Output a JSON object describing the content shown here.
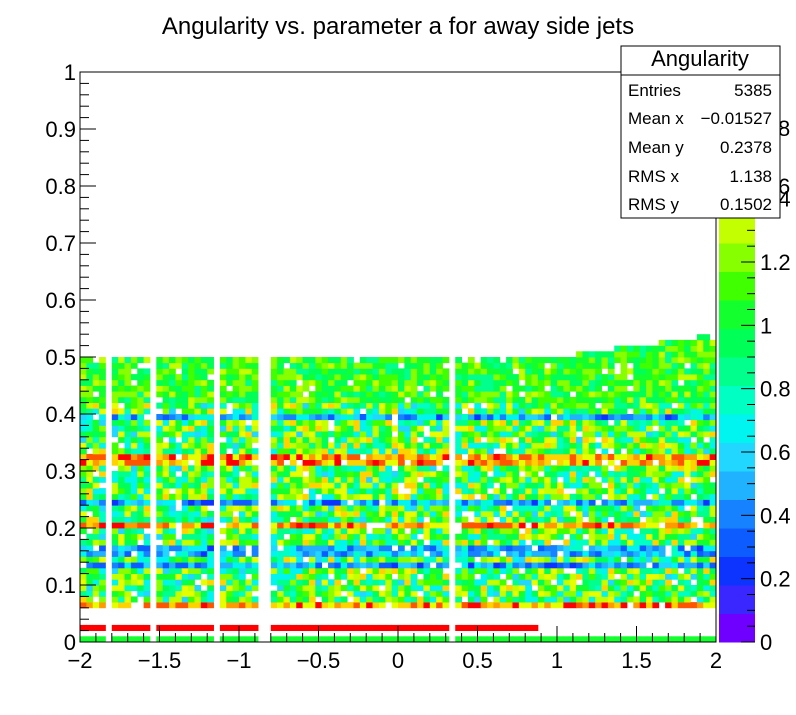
{
  "chart_data": {
    "type": "heatmap",
    "title": "Angularity vs. parameter a for away side jets",
    "xlabel": "",
    "ylabel": "",
    "xlim": [
      -2,
      2
    ],
    "ylim": [
      0,
      1
    ],
    "x_ticks": [
      "−2",
      "−1.5",
      "−1",
      "−0.5",
      "0",
      "0.5",
      "1",
      "1.5",
      "2"
    ],
    "y_ticks": [
      "0",
      "0.1",
      "0.2",
      "0.3",
      "0.4",
      "0.5",
      "0.6",
      "0.7",
      "0.8",
      "0.9",
      "1"
    ],
    "x_bins": 100,
    "y_bins": 100,
    "z_range": [
      0,
      1.8
    ],
    "z_ticks": [
      "0",
      "0.2",
      "0.4",
      "0.6",
      "0.8",
      "1",
      "1.2",
      "1.4"
    ],
    "z_ticks_hidden": [
      "6",
      "8"
    ],
    "empty_x_ranges": [
      [
        -1.82,
        -1.78
      ],
      [
        -1.57,
        -1.53
      ],
      [
        -1.15,
        -1.11
      ],
      [
        -0.86,
        -0.82
      ],
      [
        0.33,
        0.36
      ]
    ],
    "populated_region": "y from 0 to about 0.5; upper edge rises to about 0.54 for x > 1",
    "bottom_row": {
      "y": [
        0.0,
        0.01
      ],
      "level": 1.0
    },
    "red_band": {
      "y": [
        0.02,
        0.03
      ],
      "x": [
        -2,
        0.87
      ],
      "level": 1.8
    },
    "grid": false
  },
  "stats_box": {
    "title": "Angularity",
    "rows": [
      {
        "label": "Entries",
        "value": "5385"
      },
      {
        "label": "Mean x",
        "value": "−0.01527"
      },
      {
        "label": "Mean y",
        "value": "0.2378"
      },
      {
        "label": "RMS x",
        "value": "1.138"
      },
      {
        "label": "RMS y",
        "value": "0.1502"
      }
    ]
  },
  "colors": {
    "palette": [
      "#6f00ff",
      "#3a26ff",
      "#0d33ff",
      "#0d5cff",
      "#1782ff",
      "#20b2ff",
      "#21d6ff",
      "#00f5f0",
      "#00ffc2",
      "#00ff8c",
      "#00ff57",
      "#14ff2e",
      "#40ff00",
      "#87ff00",
      "#c4ff00",
      "#e6ff00",
      "#ffd200",
      "#ff9a00",
      "#ff5500",
      "#ff0000"
    ],
    "axis": "#000000",
    "background": "#ffffff"
  }
}
